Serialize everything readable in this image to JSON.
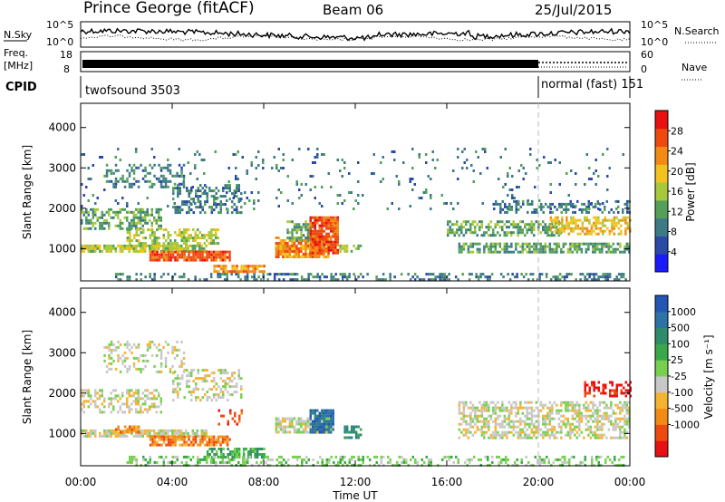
{
  "header": {
    "title": "Prince George (fitACF)",
    "beam": "Beam 06",
    "date": "25/Jul/2015"
  },
  "strips": {
    "nsky": {
      "left_label": "N.Sky",
      "right_label": "N.Search",
      "left_ticks": [
        "10^5",
        "10^0"
      ],
      "right_ticks": [
        "10^5",
        "10^0"
      ]
    },
    "freq": {
      "left_label_1": "Freq.",
      "left_label_2": "[MHz]",
      "left_ticks": [
        "18",
        "8"
      ],
      "right_label": "Nave",
      "right_ticks": [
        "60",
        "0"
      ]
    },
    "cpid": {
      "label": "CPID",
      "segments": [
        {
          "text": "twofsound 3503",
          "start_hour": 0,
          "end_hour": 20
        },
        {
          "text": "normal (fast) 151",
          "start_hour": 20,
          "end_hour": 24
        }
      ]
    }
  },
  "chart_data": [
    {
      "type": "heatmap",
      "name": "power",
      "ylabel": "Slant Range [km]",
      "xlabel": "",
      "xlim": [
        0,
        24
      ],
      "ylim": [
        200,
        4600
      ],
      "yticks": [
        1000,
        2000,
        3000,
        4000
      ],
      "x_tick_labels": [
        "00:00",
        "04:00",
        "08:00",
        "12:00",
        "16:00",
        "20:00",
        "00:00"
      ],
      "x_tick_hours": [
        0,
        4,
        8,
        12,
        16,
        20,
        24
      ],
      "colorbar": {
        "label": "Power [dB]",
        "range": [
          0,
          32
        ],
        "ticks": [
          4,
          8,
          12,
          16,
          20,
          24,
          28
        ],
        "colors": [
          "#1a1aff",
          "#2b4aa8",
          "#3d7a86",
          "#54a05a",
          "#a8c83c",
          "#f2c21e",
          "#f28a14",
          "#ee4a10",
          "#e81010"
        ]
      },
      "regions": [
        {
          "t0": 0.0,
          "t1": 5.5,
          "r0": 900,
          "r1": 1100,
          "level": 14,
          "density": 0.85
        },
        {
          "t0": 3.0,
          "t1": 6.5,
          "r0": 700,
          "r1": 950,
          "level": 27,
          "density": 0.9
        },
        {
          "t0": 5.8,
          "t1": 8.0,
          "r0": 400,
          "r1": 600,
          "level": 22,
          "density": 0.85
        },
        {
          "t0": 0.0,
          "t1": 3.5,
          "r0": 1500,
          "r1": 2000,
          "level": 10,
          "density": 0.55
        },
        {
          "t0": 2.0,
          "t1": 6.0,
          "r0": 1100,
          "r1": 1500,
          "level": 16,
          "density": 0.55
        },
        {
          "t0": 4.0,
          "t1": 7.0,
          "r0": 1900,
          "r1": 2600,
          "level": 9,
          "density": 0.45
        },
        {
          "t0": 1.0,
          "t1": 4.5,
          "r0": 2500,
          "r1": 3100,
          "level": 8,
          "density": 0.35
        },
        {
          "t0": 8.5,
          "t1": 10.8,
          "r0": 800,
          "r1": 1300,
          "level": 22,
          "density": 0.85
        },
        {
          "t0": 9.0,
          "t1": 10.2,
          "r0": 1200,
          "r1": 1700,
          "level": 13,
          "density": 0.6
        },
        {
          "t0": 10.0,
          "t1": 11.2,
          "r0": 900,
          "r1": 1800,
          "level": 27,
          "density": 0.9
        },
        {
          "t0": 11.3,
          "t1": 12.2,
          "r0": 900,
          "r1": 1100,
          "level": 17,
          "density": 0.55
        },
        {
          "t0": 16.5,
          "t1": 24.0,
          "r0": 900,
          "r1": 1150,
          "level": 13,
          "density": 0.7
        },
        {
          "t0": 16.0,
          "t1": 21.0,
          "r0": 1300,
          "r1": 1700,
          "level": 12,
          "density": 0.55
        },
        {
          "t0": 20.5,
          "t1": 24.0,
          "r0": 1350,
          "r1": 1800,
          "level": 18,
          "density": 0.6
        },
        {
          "t0": 18.0,
          "t1": 24.0,
          "r0": 1900,
          "r1": 2200,
          "level": 9,
          "density": 0.35
        },
        {
          "t0": 1.5,
          "t1": 23.8,
          "r0": 200,
          "r1": 400,
          "level": 7,
          "density": 0.35
        },
        {
          "t0": 0.0,
          "t1": 24.0,
          "r0": 2000,
          "r1": 3500,
          "level": 6,
          "density": 0.05
        }
      ]
    },
    {
      "type": "heatmap",
      "name": "velocity",
      "ylabel": "Slant Range [km]",
      "xlabel": "Time UT",
      "xlim": [
        0,
        24
      ],
      "ylim": [
        200,
        4600
      ],
      "yticks": [
        1000,
        2000,
        3000,
        4000
      ],
      "x_tick_labels": [
        "00:00",
        "04:00",
        "08:00",
        "12:00",
        "16:00",
        "20:00",
        "00:00"
      ],
      "x_tick_hours": [
        0,
        4,
        8,
        12,
        16,
        20,
        24
      ],
      "colorbar": {
        "label": "Velocity  [m s⁻¹]",
        "range": [
          -1200,
          1200
        ],
        "ticks": [
          "1000",
          "500",
          "100",
          "25",
          "-25",
          "-100",
          "-500",
          "-1000"
        ],
        "colors": [
          "#2456b4",
          "#2d73a8",
          "#2e8c6a",
          "#3aa84a",
          "#78d050",
          "#c8c8c8",
          "#f4b432",
          "#f28a14",
          "#ee4a10",
          "#e81010"
        ]
      },
      "regions": [
        {
          "t0": 0.0,
          "t1": 5.5,
          "r0": 900,
          "r1": 1100,
          "level": 5,
          "density": 0.8
        },
        {
          "t0": 3.0,
          "t1": 6.5,
          "r0": 700,
          "r1": 950,
          "level": 7,
          "density": 0.8
        },
        {
          "t0": 5.5,
          "t1": 8.0,
          "r0": 400,
          "r1": 650,
          "level": 3,
          "density": 0.6
        },
        {
          "t0": 0.0,
          "t1": 3.5,
          "r0": 1500,
          "r1": 2100,
          "level": 5,
          "density": 0.45
        },
        {
          "t0": 4.0,
          "t1": 7.0,
          "r0": 1800,
          "r1": 2600,
          "level": 5,
          "density": 0.35
        },
        {
          "t0": 1.0,
          "t1": 4.5,
          "r0": 2500,
          "r1": 3300,
          "level": 5,
          "density": 0.3
        },
        {
          "t0": 1.5,
          "t1": 2.5,
          "r0": 1000,
          "r1": 1200,
          "level": 7,
          "density": 0.7
        },
        {
          "t0": 8.5,
          "t1": 11.0,
          "r0": 1000,
          "r1": 1400,
          "level": 5,
          "density": 0.8
        },
        {
          "t0": 10.0,
          "t1": 11.0,
          "r0": 1000,
          "r1": 1600,
          "level": 1,
          "density": 0.85
        },
        {
          "t0": 11.5,
          "t1": 12.2,
          "r0": 900,
          "r1": 1200,
          "level": 2,
          "density": 0.5
        },
        {
          "t0": 16.5,
          "t1": 24.0,
          "r0": 900,
          "r1": 1800,
          "level": 5,
          "density": 0.55
        },
        {
          "t0": 2.0,
          "t1": 23.8,
          "r0": 200,
          "r1": 450,
          "level": 4,
          "density": 0.4
        },
        {
          "t0": 22.0,
          "t1": 24.0,
          "r0": 1900,
          "r1": 2300,
          "level": 9,
          "density": 0.5
        },
        {
          "t0": 6.0,
          "t1": 7.0,
          "r0": 1200,
          "r1": 1600,
          "level": 8,
          "density": 0.3
        }
      ]
    }
  ]
}
